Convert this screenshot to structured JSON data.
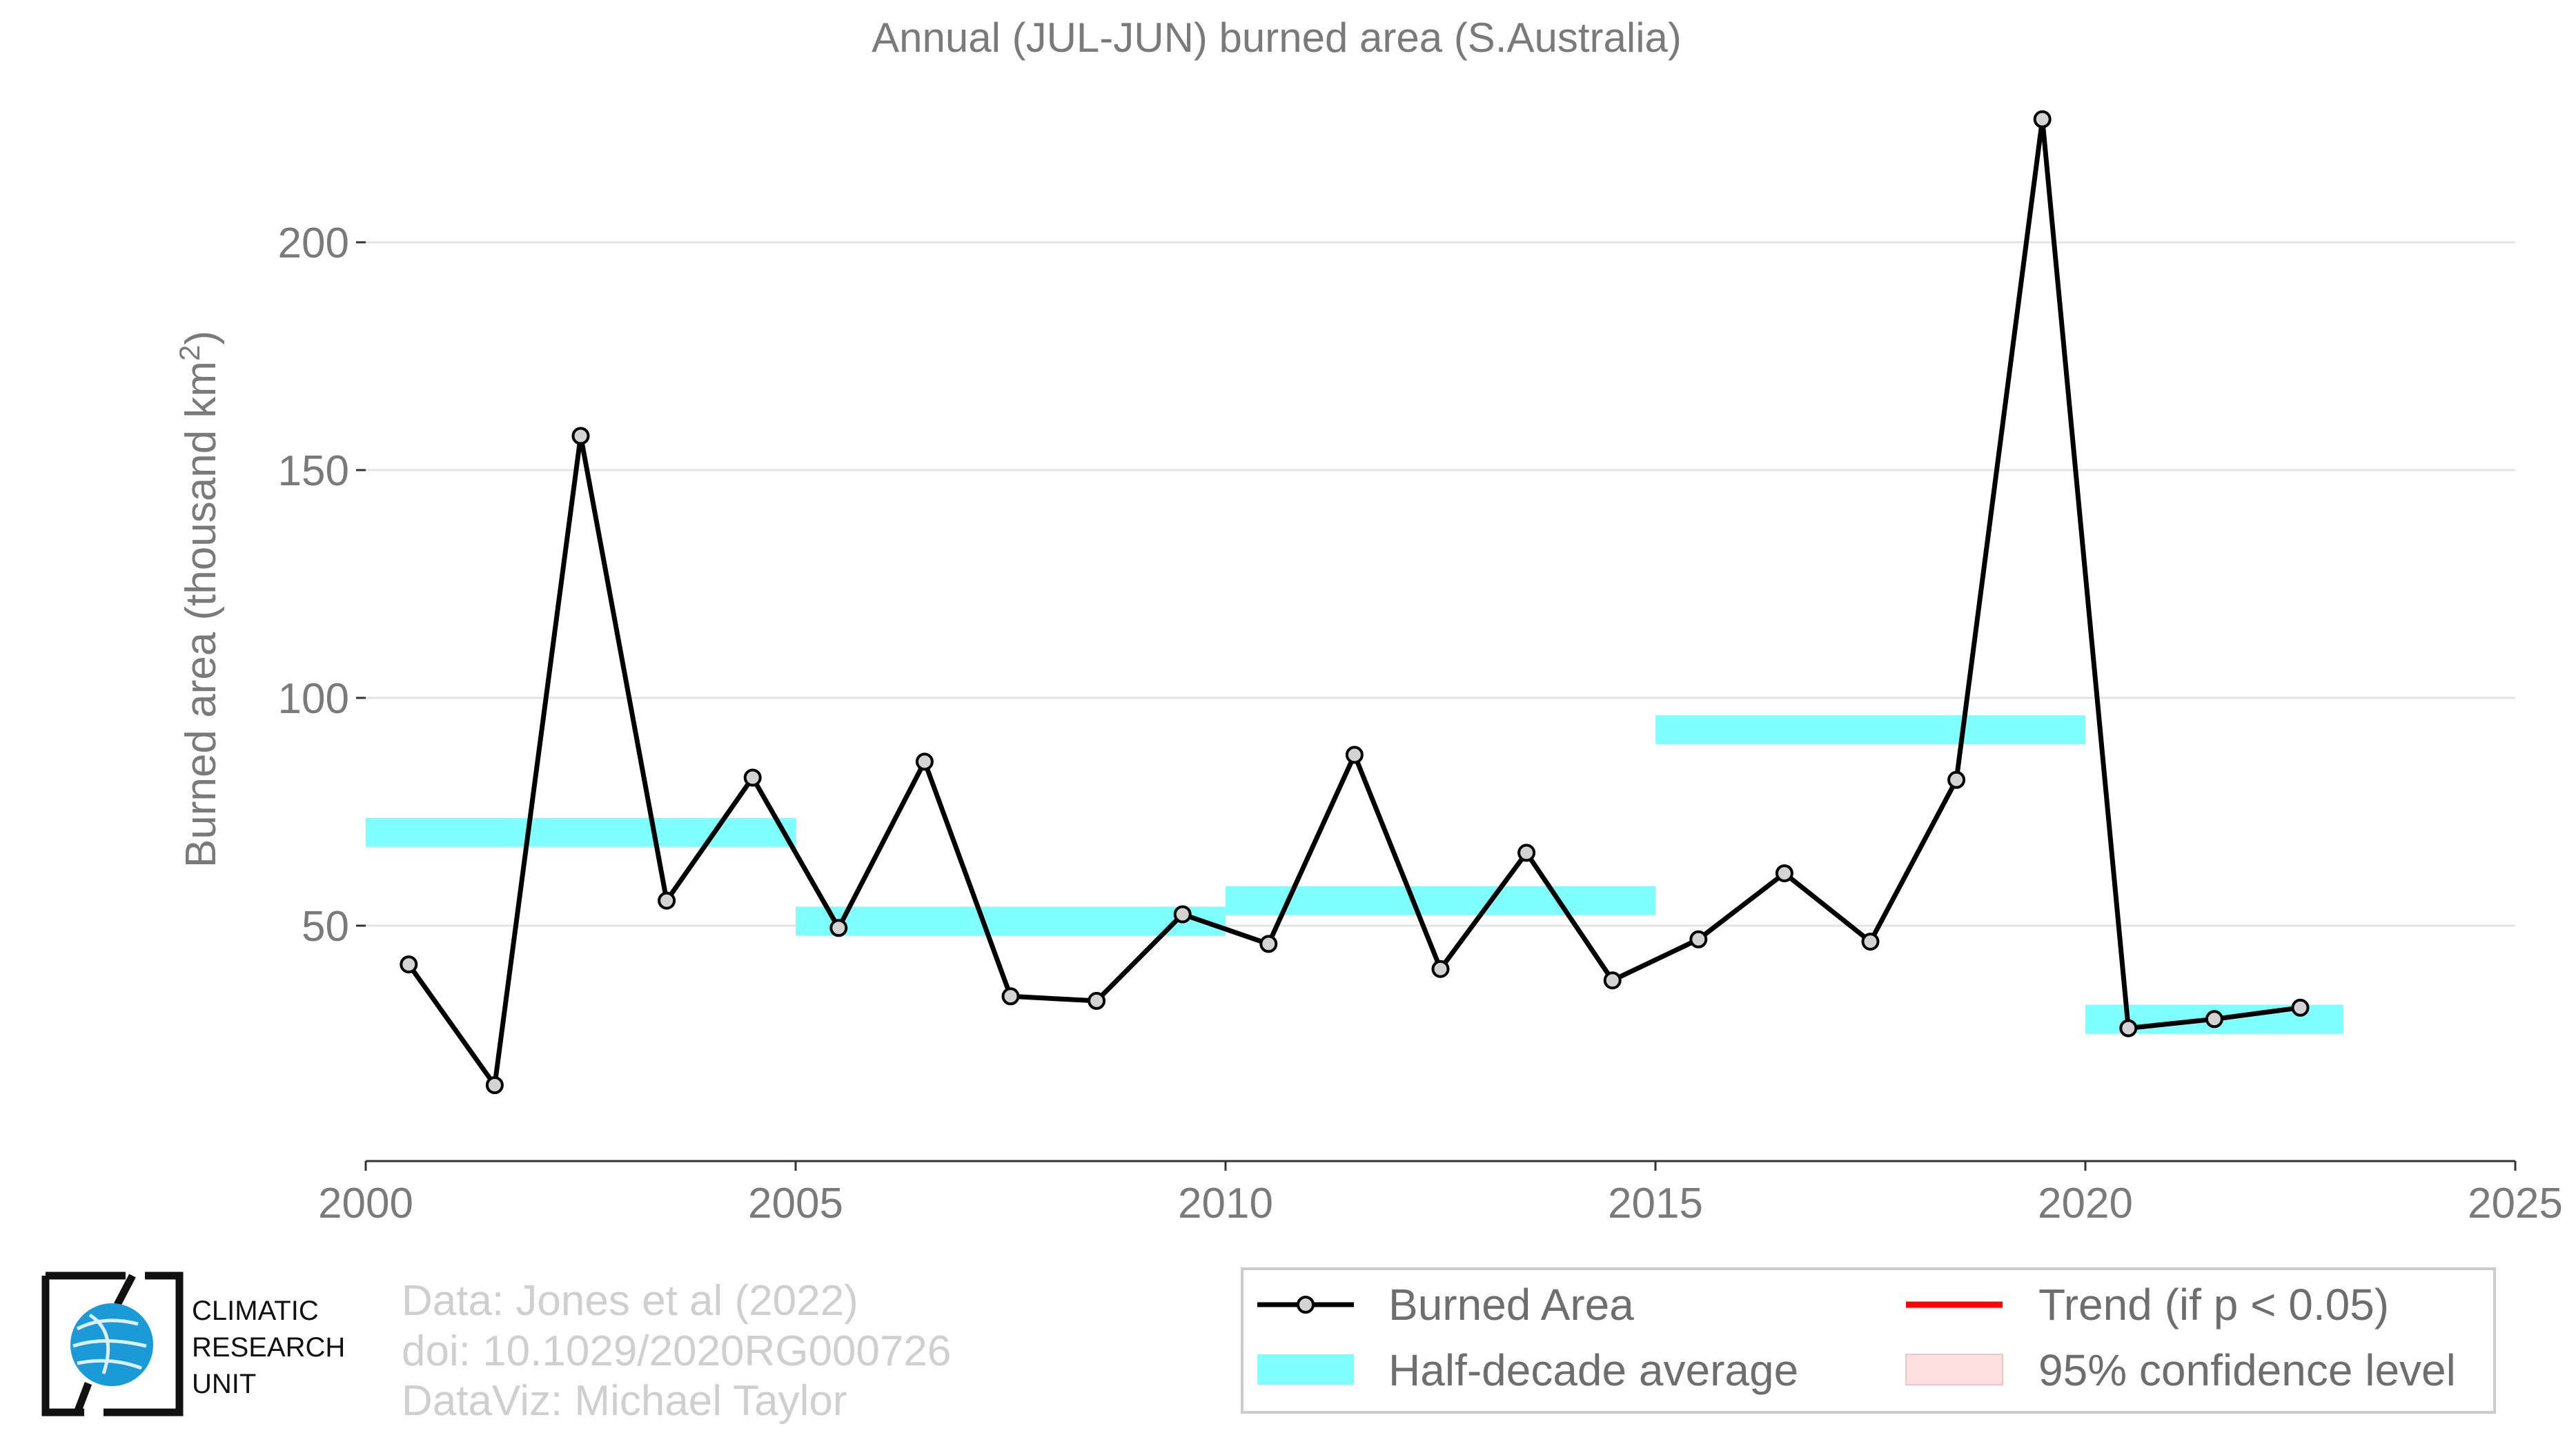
{
  "chart_data": {
    "type": "line",
    "title": "Annual (JUL-JUN) burned area (S.Australia)",
    "ylabel": "Burned area (thousand km²)",
    "xlabel": "",
    "xlim": [
      2000,
      2025
    ],
    "ylim": [
      0,
      230
    ],
    "x_ticks": [
      "2000",
      "2005",
      "2010",
      "2015",
      "2020",
      "2025"
    ],
    "y_ticks": [
      "50",
      "100",
      "150",
      "200"
    ],
    "grid": "horizontal",
    "series": [
      {
        "name": "Burned Area",
        "x": [
          2000.5,
          2001.5,
          2002.5,
          2003.5,
          2004.5,
          2005.5,
          2006.5,
          2007.5,
          2008.5,
          2009.5,
          2010.5,
          2011.5,
          2012.5,
          2013.5,
          2014.5,
          2015.5,
          2016.5,
          2017.5,
          2018.5,
          2019.5,
          2020.5,
          2021.5,
          2022.5
        ],
        "values": [
          41.5,
          15.0,
          157.5,
          55.5,
          82.5,
          49.5,
          86.0,
          34.5,
          33.5,
          52.5,
          46.0,
          87.5,
          40.5,
          66.0,
          38.0,
          47.0,
          61.5,
          46.5,
          82.0,
          227.0,
          27.5,
          29.5,
          32.0
        ],
        "color": "#000000",
        "marker_fill": "#d3d3d3"
      }
    ],
    "half_decade_averages": [
      {
        "x_start": 2000,
        "x_end": 2005,
        "value": 70.5
      },
      {
        "x_start": 2005,
        "x_end": 2010,
        "value": 51.0
      },
      {
        "x_start": 2010,
        "x_end": 2015,
        "value": 55.5
      },
      {
        "x_start": 2015,
        "x_end": 2020,
        "value": 93.0
      },
      {
        "x_start": 2020,
        "x_end": 2023,
        "value": 29.5
      }
    ],
    "half_decade_color": "#7fffff",
    "legend_placement": "bottom-right",
    "legend": [
      {
        "label": "Burned Area",
        "kind": "line-marker",
        "color": "#000000"
      },
      {
        "label": "Trend (if p < 0.05)",
        "kind": "line",
        "color": "#ff0000"
      },
      {
        "label": "Half-decade average",
        "kind": "band",
        "color": "#7fffff"
      },
      {
        "label": "95% confidence level",
        "kind": "band",
        "color": "#ffe0e0"
      }
    ]
  },
  "credits": [
    "Data: Jones et al (2022)",
    "doi: 10.1029/2020RG000726",
    "DataViz: Michael Taylor"
  ],
  "logo": {
    "lines": [
      "CLIMATIC",
      "RESEARCH",
      "UNIT"
    ],
    "accent": "#1a9ad6"
  }
}
